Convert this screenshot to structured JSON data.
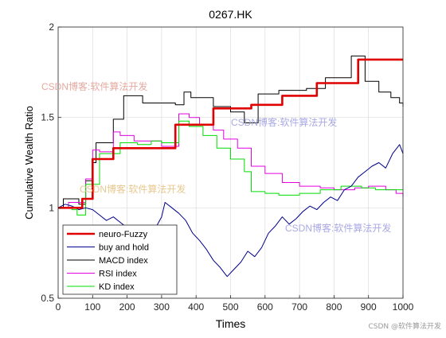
{
  "chart_data": {
    "type": "line",
    "title": "0267.HK",
    "xlabel": "Times",
    "ylabel": "Cumulative Wealth Ratio",
    "xlim": [
      0,
      1000
    ],
    "ylim": [
      0.5,
      2
    ],
    "xticks": [
      0,
      100,
      200,
      300,
      400,
      500,
      600,
      700,
      800,
      900,
      1000
    ],
    "yticks": [
      0.5,
      1,
      1.5,
      2
    ],
    "grid": true,
    "legend_position": "bottom-left",
    "series": [
      {
        "name": "neuro-Fuzzy",
        "color": "#e00000",
        "style": "step-thick",
        "points": [
          [
            0,
            1.0
          ],
          [
            70,
            1.0
          ],
          [
            70,
            1.05
          ],
          [
            100,
            1.05
          ],
          [
            100,
            1.27
          ],
          [
            160,
            1.27
          ],
          [
            160,
            1.33
          ],
          [
            340,
            1.33
          ],
          [
            340,
            1.46
          ],
          [
            450,
            1.46
          ],
          [
            450,
            1.55
          ],
          [
            560,
            1.55
          ],
          [
            560,
            1.57
          ],
          [
            650,
            1.57
          ],
          [
            650,
            1.62
          ],
          [
            750,
            1.62
          ],
          [
            750,
            1.69
          ],
          [
            870,
            1.69
          ],
          [
            870,
            1.82
          ],
          [
            1000,
            1.82
          ]
        ]
      },
      {
        "name": "buy and hold",
        "color": "#00008b",
        "style": "line",
        "points": [
          [
            0,
            1.0
          ],
          [
            20,
            1.02
          ],
          [
            40,
            1.01
          ],
          [
            60,
            0.99
          ],
          [
            80,
            1.0
          ],
          [
            100,
            0.99
          ],
          [
            120,
            0.96
          ],
          [
            140,
            0.93
          ],
          [
            160,
            0.95
          ],
          [
            180,
            0.92
          ],
          [
            200,
            0.89
          ],
          [
            220,
            0.86
          ],
          [
            240,
            0.88
          ],
          [
            260,
            0.85
          ],
          [
            280,
            0.88
          ],
          [
            300,
            0.95
          ],
          [
            310,
            1.03
          ],
          [
            330,
            1.0
          ],
          [
            350,
            0.97
          ],
          [
            370,
            0.93
          ],
          [
            390,
            0.86
          ],
          [
            410,
            0.82
          ],
          [
            430,
            0.77
          ],
          [
            450,
            0.71
          ],
          [
            470,
            0.67
          ],
          [
            490,
            0.62
          ],
          [
            510,
            0.66
          ],
          [
            530,
            0.7
          ],
          [
            550,
            0.76
          ],
          [
            570,
            0.73
          ],
          [
            590,
            0.78
          ],
          [
            610,
            0.86
          ],
          [
            630,
            0.9
          ],
          [
            650,
            0.95
          ],
          [
            670,
            0.91
          ],
          [
            690,
            0.94
          ],
          [
            710,
            0.98
          ],
          [
            730,
            1.01
          ],
          [
            750,
            0.99
          ],
          [
            770,
            1.03
          ],
          [
            790,
            1.06
          ],
          [
            810,
            1.04
          ],
          [
            830,
            1.1
          ],
          [
            850,
            1.12
          ],
          [
            870,
            1.17
          ],
          [
            890,
            1.2
          ],
          [
            910,
            1.23
          ],
          [
            930,
            1.25
          ],
          [
            950,
            1.22
          ],
          [
            970,
            1.3
          ],
          [
            990,
            1.35
          ],
          [
            1000,
            1.3
          ]
        ]
      },
      {
        "name": "MACD index",
        "color": "#000000",
        "style": "step",
        "points": [
          [
            0,
            1.0
          ],
          [
            15,
            1.05
          ],
          [
            60,
            1.02
          ],
          [
            80,
            1.15
          ],
          [
            100,
            1.25
          ],
          [
            110,
            1.36
          ],
          [
            160,
            1.49
          ],
          [
            190,
            1.62
          ],
          [
            245,
            1.58
          ],
          [
            340,
            1.57
          ],
          [
            365,
            1.64
          ],
          [
            385,
            1.61
          ],
          [
            450,
            1.56
          ],
          [
            500,
            1.53
          ],
          [
            540,
            1.47
          ],
          [
            580,
            1.63
          ],
          [
            640,
            1.65
          ],
          [
            720,
            1.66
          ],
          [
            775,
            1.72
          ],
          [
            850,
            1.84
          ],
          [
            890,
            1.7
          ],
          [
            930,
            1.64
          ],
          [
            965,
            1.61
          ],
          [
            990,
            1.58
          ],
          [
            1000,
            1.56
          ]
        ]
      },
      {
        "name": "RSI index",
        "color": "#e000e0",
        "style": "step",
        "points": [
          [
            0,
            1.0
          ],
          [
            30,
            1.03
          ],
          [
            80,
            1.16
          ],
          [
            100,
            1.32
          ],
          [
            120,
            1.31
          ],
          [
            160,
            1.42
          ],
          [
            180,
            1.4
          ],
          [
            220,
            1.37
          ],
          [
            300,
            1.34
          ],
          [
            350,
            1.52
          ],
          [
            380,
            1.5
          ],
          [
            410,
            1.46
          ],
          [
            450,
            1.43
          ],
          [
            480,
            1.38
          ],
          [
            520,
            1.33
          ],
          [
            560,
            1.23
          ],
          [
            600,
            1.19
          ],
          [
            650,
            1.14
          ],
          [
            700,
            1.12
          ],
          [
            760,
            1.11
          ],
          [
            800,
            1.1
          ],
          [
            860,
            1.11
          ],
          [
            900,
            1.12
          ],
          [
            950,
            1.1
          ],
          [
            980,
            1.08
          ],
          [
            1000,
            1.06
          ]
        ]
      },
      {
        "name": "KD index",
        "color": "#00dd00",
        "style": "step",
        "points": [
          [
            0,
            1.0
          ],
          [
            40,
            0.99
          ],
          [
            55,
            0.96
          ],
          [
            80,
            1.13
          ],
          [
            120,
            1.3
          ],
          [
            180,
            1.36
          ],
          [
            230,
            1.35
          ],
          [
            270,
            1.37
          ],
          [
            300,
            1.36
          ],
          [
            350,
            1.48
          ],
          [
            380,
            1.45
          ],
          [
            420,
            1.4
          ],
          [
            460,
            1.33
          ],
          [
            500,
            1.27
          ],
          [
            540,
            1.2
          ],
          [
            560,
            1.09
          ],
          [
            600,
            1.08
          ],
          [
            640,
            1.07
          ],
          [
            700,
            1.08
          ],
          [
            760,
            1.1
          ],
          [
            820,
            1.12
          ],
          [
            880,
            1.11
          ],
          [
            920,
            1.1
          ],
          [
            960,
            1.1
          ],
          [
            1000,
            1.1
          ]
        ]
      }
    ]
  },
  "watermarks": [
    "CSDN博客:软件算法开发",
    "CSDN博客:软件算法开发",
    "CSDN博客:软件算法开发",
    "CSDN博客:软件算法开发"
  ],
  "footer": "CSDN @软件算法开发"
}
